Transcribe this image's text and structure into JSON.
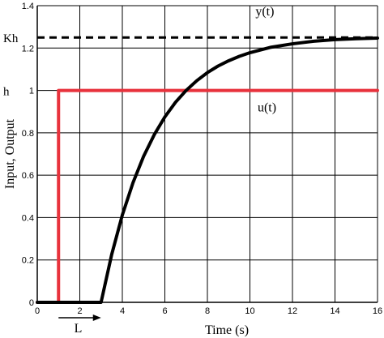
{
  "chart_data": {
    "type": "line",
    "title": "",
    "xlabel": "Time (s)",
    "ylabel": "Input, Output",
    "xlim": [
      0,
      16
    ],
    "ylim": [
      0,
      1.4
    ],
    "grid": true,
    "x_ticks": [
      0,
      2,
      4,
      6,
      8,
      10,
      12,
      14,
      16
    ],
    "x_tick_labels": [
      "0",
      "2",
      "4",
      "6",
      "8",
      "10",
      "12",
      "14",
      "16"
    ],
    "y_ticks": [
      0,
      0.2,
      0.4,
      0.6,
      0.8,
      1,
      1.2,
      1.4
    ],
    "y_tick_labels": [
      "0",
      "0.2",
      "0.4",
      "0.6",
      "0.8",
      "1",
      "1.2",
      "1.4"
    ],
    "extra_y_labels": [
      {
        "label": "Kh",
        "y": 1.25
      },
      {
        "label": "h",
        "y": 1.0
      }
    ],
    "series": [
      {
        "name": "u(t)",
        "color": "#e8323c",
        "points": [
          [
            0,
            0
          ],
          [
            1,
            0
          ],
          [
            1,
            1
          ],
          [
            16,
            1
          ]
        ]
      },
      {
        "name": "y(t)",
        "color": "#000000",
        "points": [
          [
            0,
            0
          ],
          [
            3,
            0
          ],
          [
            3.5,
            0.226
          ],
          [
            4,
            0.412
          ],
          [
            4.5,
            0.564
          ],
          [
            5,
            0.689
          ],
          [
            5.5,
            0.791
          ],
          [
            6,
            0.875
          ],
          [
            6.5,
            0.944
          ],
          [
            7,
            1.0
          ],
          [
            7.5,
            1.046
          ],
          [
            8,
            1.084
          ],
          [
            8.5,
            1.115
          ],
          [
            9,
            1.14
          ],
          [
            9.5,
            1.161
          ],
          [
            10,
            1.178
          ],
          [
            11,
            1.204
          ],
          [
            12,
            1.22
          ],
          [
            13,
            1.232
          ],
          [
            14,
            1.24
          ],
          [
            15,
            1.244
          ],
          [
            16,
            1.247
          ]
        ]
      }
    ],
    "reference_line": {
      "label": "Kh",
      "y": 1.25,
      "style": "dashed",
      "color": "#000000"
    },
    "annotations": {
      "y_label": "y(t)",
      "u_label": "u(t)",
      "delay_label": "L",
      "delay_arrow": {
        "from": 1,
        "to": 3
      }
    },
    "colors": {
      "grid": "#000000",
      "axis": "#000000",
      "input": "#e8323c",
      "output": "#000000"
    }
  }
}
